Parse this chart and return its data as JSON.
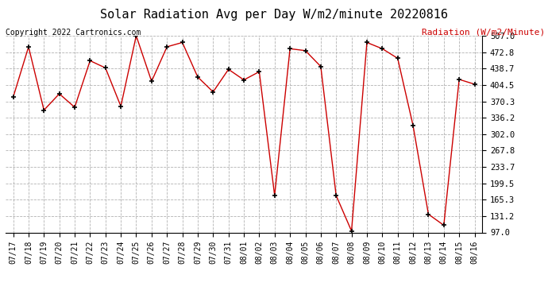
{
  "title": "Solar Radiation Avg per Day W/m2/minute 20220816",
  "copyright": "Copyright 2022 Cartronics.com",
  "ylabel": "Radiation (W/m2/Minute)",
  "line_color": "#cc0000",
  "marker_color": "#000000",
  "background_color": "#ffffff",
  "grid_color": "#aaaaaa",
  "title_color": "#000000",
  "ylabel_color": "#cc0000",
  "copyright_color": "#000000",
  "ylim": [
    97.0,
    507.0
  ],
  "yticks": [
    97.0,
    131.2,
    165.3,
    199.5,
    233.7,
    267.8,
    302.0,
    336.2,
    370.3,
    404.5,
    438.7,
    472.8,
    507.0
  ],
  "dates": [
    "07/17",
    "07/18",
    "07/19",
    "07/20",
    "07/21",
    "07/22",
    "07/23",
    "07/24",
    "07/25",
    "07/26",
    "07/27",
    "07/28",
    "07/29",
    "07/30",
    "07/31",
    "08/01",
    "08/02",
    "08/03",
    "08/04",
    "08/05",
    "08/06",
    "08/07",
    "08/08",
    "08/09",
    "08/10",
    "08/11",
    "08/12",
    "08/13",
    "08/14",
    "08/15",
    "08/16"
  ],
  "values": [
    379.0,
    484.0,
    352.0,
    386.0,
    358.0,
    455.0,
    440.0,
    360.0,
    507.0,
    412.0,
    484.0,
    493.0,
    421.0,
    390.0,
    437.0,
    415.0,
    432.0,
    174.0,
    480.0,
    476.0,
    443.0,
    174.0,
    100.0,
    493.0,
    480.0,
    460.0,
    320.0,
    135.0,
    112.0,
    416.0,
    406.0
  ],
  "figsize": [
    6.9,
    3.75
  ],
  "dpi": 100,
  "title_fontsize": 11,
  "copyright_fontsize": 7,
  "ylabel_fontsize": 8,
  "tick_fontsize": 7,
  "ytick_fontsize": 7.5
}
